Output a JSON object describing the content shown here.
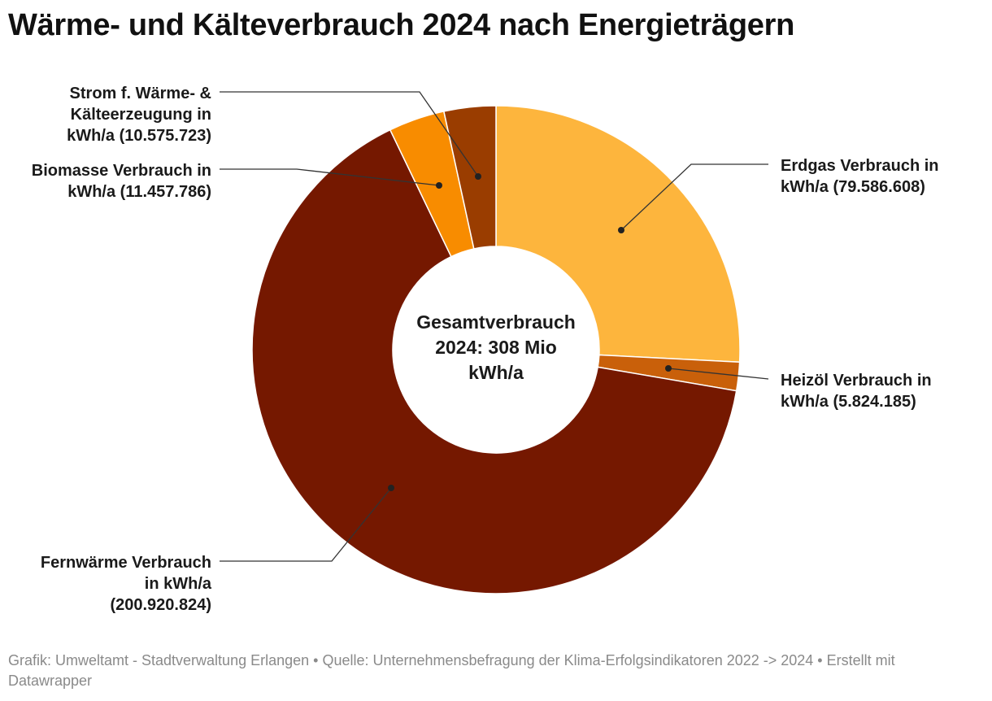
{
  "title": "Wärme- und Kälteverbrauch 2024 nach Energieträgern",
  "footer": "Grafik: Umweltamt - Stadtverwaltung Erlangen • Quelle: Unternehmensbefragung der Klima-Erfolgsindikatoren 2022 -> 2024 • Erstellt mit Datawrapper",
  "chart_data": {
    "type": "pie",
    "donut": true,
    "center_label": [
      "Gesamtverbrauch",
      "2024: 308 Mio",
      "kWh/a"
    ],
    "slices": [
      {
        "name": "Erdgas Verbrauch in kWh/a",
        "value": 79586608,
        "color": "#fdb53d",
        "label_lines": [
          "Erdgas Verbrauch in",
          "kWh/a (79.586.608)"
        ]
      },
      {
        "name": "Heizöl Verbrauch in kWh/a",
        "value": 5824185,
        "color": "#c9600a",
        "label_lines": [
          "Heizöl Verbrauch in",
          "kWh/a (5.824.185)"
        ]
      },
      {
        "name": "Fernwärme Verbrauch in kWh/a",
        "value": 200920824,
        "color": "#751800",
        "label_lines": [
          "Fernwärme Verbrauch",
          "in kWh/a",
          "(200.920.824)"
        ]
      },
      {
        "name": "Biomasse Verbrauch in kWh/a",
        "value": 11457786,
        "color": "#f88c00",
        "label_lines": [
          "Biomasse Verbrauch in",
          "kWh/a (11.457.786)"
        ]
      },
      {
        "name": "Strom f. Wärme- & Kälteerzeugung in kWh/a",
        "value": 10575723,
        "color": "#9a3d00",
        "label_lines": [
          "Strom f. Wärme- &",
          "Kälteerzeugung in",
          "kWh/a (10.575.723)"
        ]
      }
    ]
  }
}
